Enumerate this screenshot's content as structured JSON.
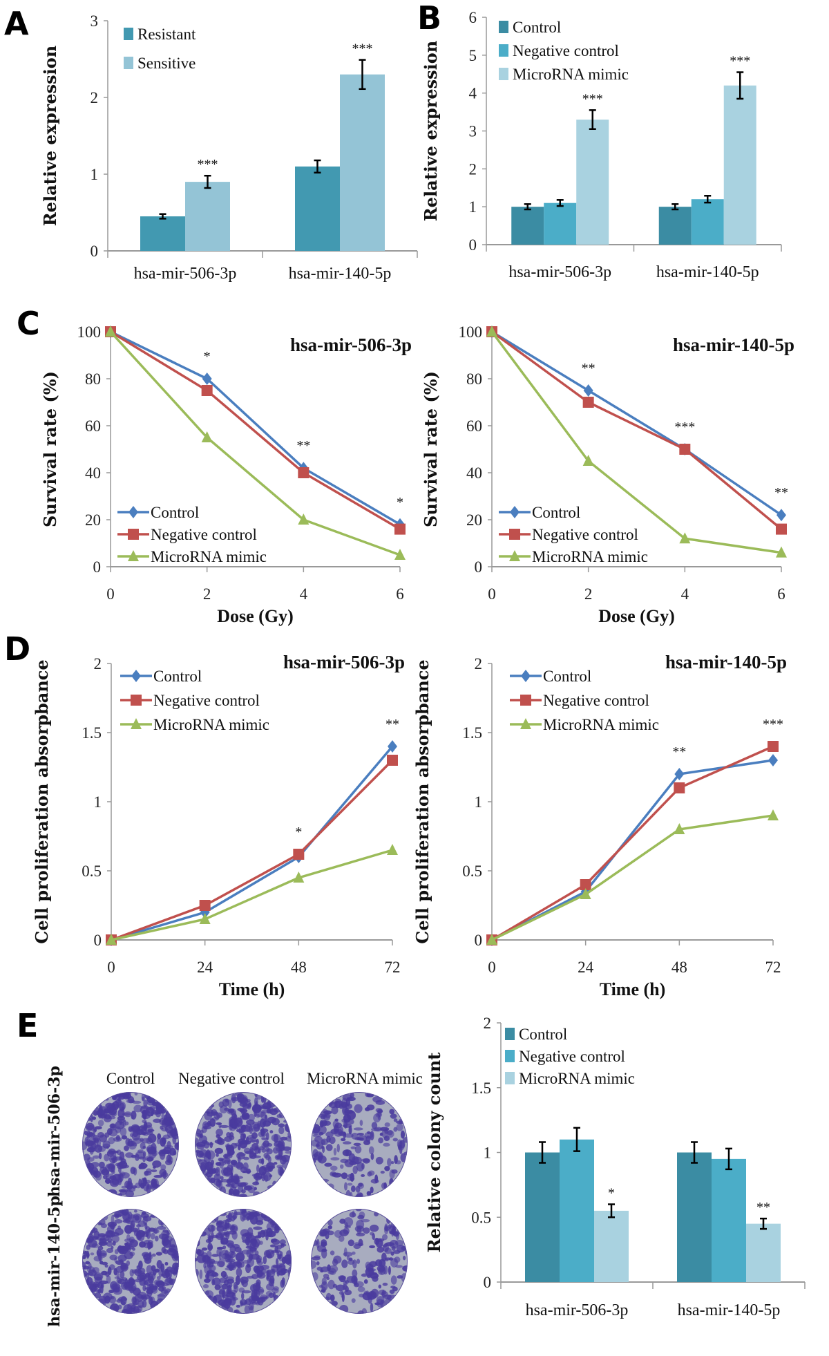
{
  "panels": [
    "A",
    "B",
    "C",
    "D",
    "E"
  ],
  "colony_image": {
    "columns": [
      "Control",
      "Negative control",
      "MicroRNA mimic"
    ],
    "rows": [
      "hsa-mir-506-3p",
      "hsa-mir-140-5p"
    ]
  },
  "colors": {
    "resistant": "#4299b1",
    "sensitive": "#94c4d6",
    "bar_control": "#3b8ca3",
    "bar_negative_control": "#4badc8",
    "bar_mimic": "#a9d2e0",
    "line_control": "#4a7ebf",
    "line_negative_control": "#c0504d",
    "line_mimic": "#9bbb59",
    "stain": "#4a3b9e"
  },
  "chart_data": [
    {
      "type": "bar",
      "panel": "A",
      "categories": [
        "hsa-mir-506-3p",
        "hsa-mir-140-5p"
      ],
      "ylabel": "Relative expression",
      "xlabel": "",
      "ylim": [
        0,
        3
      ],
      "yticks": [
        "0",
        "1",
        "2",
        "3"
      ],
      "legend": "top-left",
      "series": [
        {
          "name": "Resistant",
          "values": [
            0.45,
            1.1
          ],
          "errors": [
            0.03,
            0.08
          ],
          "color": "#4299b1"
        },
        {
          "name": "Sensitive",
          "values": [
            0.9,
            2.3
          ],
          "errors": [
            0.08,
            0.19
          ],
          "color": "#94c4d6",
          "annotations": [
            "***",
            "***"
          ]
        }
      ]
    },
    {
      "type": "bar",
      "panel": "B",
      "categories": [
        "hsa-mir-506-3p",
        "hsa-mir-140-5p"
      ],
      "ylabel": "Relative expression",
      "xlabel": "",
      "ylim": [
        0,
        6
      ],
      "yticks": [
        "0",
        "1",
        "2",
        "3",
        "4",
        "5",
        "6"
      ],
      "legend": "top-left",
      "series": [
        {
          "name": "Control",
          "values": [
            1.0,
            1.0
          ],
          "errors": [
            0.07,
            0.07
          ],
          "color": "#3b8ca3"
        },
        {
          "name": "Negative control",
          "values": [
            1.1,
            1.2
          ],
          "errors": [
            0.08,
            0.09
          ],
          "color": "#4badc8"
        },
        {
          "name": "MicroRNA mimic",
          "values": [
            3.3,
            4.2
          ],
          "errors": [
            0.25,
            0.35
          ],
          "color": "#a9d2e0",
          "annotations": [
            "***",
            "***"
          ]
        }
      ]
    },
    {
      "type": "line",
      "panel": "C",
      "title": "hsa-mir-506-3p",
      "x": [
        0,
        2,
        4,
        6
      ],
      "xticks": [
        "0",
        "2",
        "4",
        "6"
      ],
      "xlabel": "Dose (Gy)",
      "ylabel": "Survival rate (%)",
      "ylim": [
        0,
        100
      ],
      "yticks": [
        "0",
        "20",
        "40",
        "60",
        "80",
        "100"
      ],
      "legend": "bottom-left",
      "annotations": [
        "",
        "*",
        "**",
        "*"
      ],
      "series": [
        {
          "name": "Control",
          "values": [
            100,
            80,
            42,
            18
          ],
          "color": "#4a7ebf",
          "marker": "diamond"
        },
        {
          "name": "Negative control",
          "values": [
            100,
            75,
            40,
            16
          ],
          "color": "#c0504d",
          "marker": "square"
        },
        {
          "name": "MicroRNA mimic",
          "values": [
            100,
            55,
            20,
            5
          ],
          "color": "#9bbb59",
          "marker": "triangle"
        }
      ]
    },
    {
      "type": "line",
      "panel": "C",
      "title": "hsa-mir-140-5p",
      "x": [
        0,
        2,
        4,
        6
      ],
      "xticks": [
        "0",
        "2",
        "4",
        "6"
      ],
      "xlabel": "Dose (Gy)",
      "ylabel": "Survival rate (%)",
      "ylim": [
        0,
        100
      ],
      "yticks": [
        "0",
        "20",
        "40",
        "60",
        "80",
        "100"
      ],
      "legend": "bottom-left",
      "annotations": [
        "",
        "**",
        "***",
        "**"
      ],
      "series": [
        {
          "name": "Control",
          "values": [
            100,
            75,
            50,
            22
          ],
          "color": "#4a7ebf",
          "marker": "diamond"
        },
        {
          "name": "Negative control",
          "values": [
            100,
            70,
            50,
            16
          ],
          "color": "#c0504d",
          "marker": "square"
        },
        {
          "name": "MicroRNA mimic",
          "values": [
            100,
            45,
            12,
            6
          ],
          "color": "#9bbb59",
          "marker": "triangle"
        }
      ]
    },
    {
      "type": "line",
      "panel": "D",
      "title": "hsa-mir-506-3p",
      "x": [
        0,
        24,
        48,
        72
      ],
      "xticks": [
        "0",
        "24",
        "48",
        "72"
      ],
      "xlabel": "Time (h)",
      "ylabel": "Cell proliferation absorpbance",
      "ylim": [
        0,
        2
      ],
      "yticks": [
        "0",
        "0.5",
        "1",
        "1.5",
        "2"
      ],
      "legend": "top-left",
      "annotations": [
        "",
        "",
        "*",
        "**"
      ],
      "series": [
        {
          "name": "Control",
          "values": [
            0,
            0.2,
            0.6,
            1.4
          ],
          "color": "#4a7ebf",
          "marker": "diamond"
        },
        {
          "name": "Negative control",
          "values": [
            0,
            0.25,
            0.62,
            1.3
          ],
          "color": "#c0504d",
          "marker": "square"
        },
        {
          "name": "MicroRNA mimic",
          "values": [
            0,
            0.15,
            0.45,
            0.65
          ],
          "color": "#9bbb59",
          "marker": "triangle"
        }
      ]
    },
    {
      "type": "line",
      "panel": "D",
      "title": "hsa-mir-140-5p",
      "x": [
        0,
        24,
        48,
        72
      ],
      "xticks": [
        "0",
        "24",
        "48",
        "72"
      ],
      "xlabel": "Time (h)",
      "ylabel": "Cell proliferation absorpbance",
      "ylim": [
        0,
        2
      ],
      "yticks": [
        "0",
        "0.5",
        "1",
        "1.5",
        "2"
      ],
      "legend": "top-left",
      "annotations": [
        "",
        "",
        "**",
        "***"
      ],
      "series": [
        {
          "name": "Control",
          "values": [
            0,
            0.35,
            1.2,
            1.3
          ],
          "color": "#4a7ebf",
          "marker": "diamond"
        },
        {
          "name": "Negative control",
          "values": [
            0,
            0.4,
            1.1,
            1.4
          ],
          "color": "#c0504d",
          "marker": "square"
        },
        {
          "name": "MicroRNA mimic",
          "values": [
            0,
            0.33,
            0.8,
            0.9
          ],
          "color": "#9bbb59",
          "marker": "triangle"
        }
      ]
    },
    {
      "type": "bar",
      "panel": "E",
      "categories": [
        "hsa-mir-506-3p",
        "hsa-mir-140-5p"
      ],
      "ylabel": "Relative colony count",
      "xlabel": "",
      "ylim": [
        0,
        2
      ],
      "yticks": [
        "0",
        "0.5",
        "1",
        "1.5",
        "2"
      ],
      "legend": "top-left",
      "series": [
        {
          "name": "Control",
          "values": [
            1.0,
            1.0
          ],
          "errors": [
            0.08,
            0.08
          ],
          "color": "#3b8ca3"
        },
        {
          "name": "Negative control",
          "values": [
            1.1,
            0.95
          ],
          "errors": [
            0.09,
            0.08
          ],
          "color": "#4badc8"
        },
        {
          "name": "MicroRNA mimic",
          "values": [
            0.55,
            0.45
          ],
          "errors": [
            0.05,
            0.04
          ],
          "color": "#a9d2e0",
          "annotations": [
            "*",
            "**"
          ]
        }
      ]
    }
  ]
}
